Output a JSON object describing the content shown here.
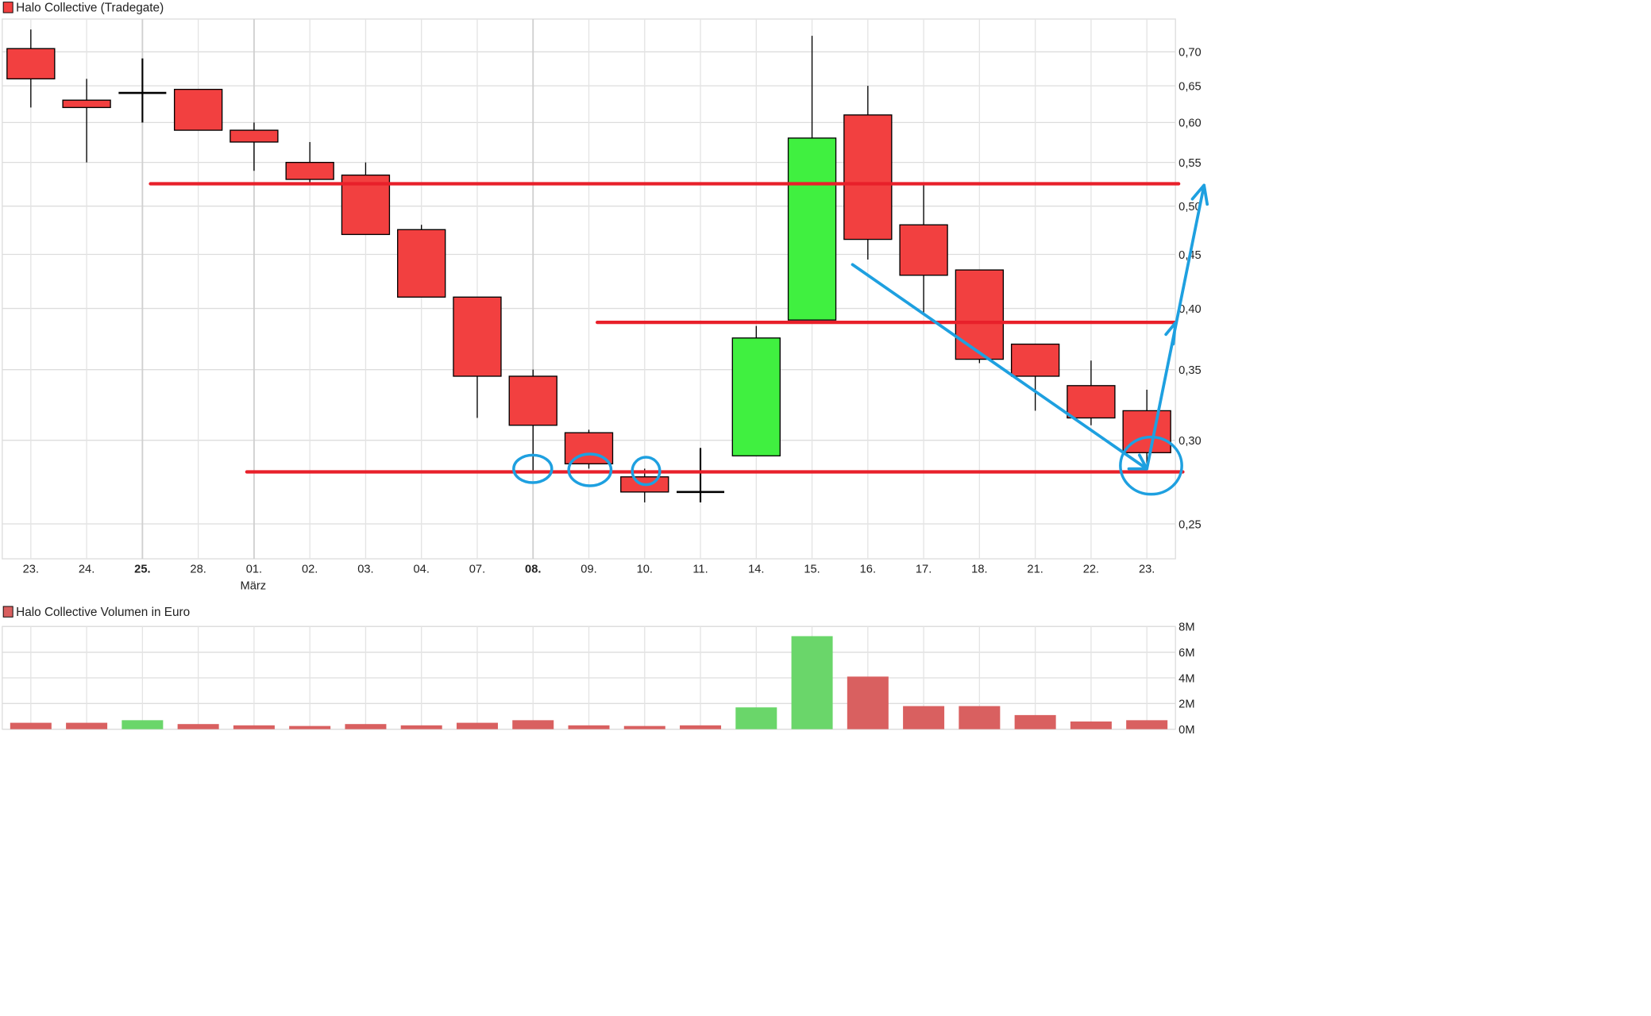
{
  "chart_data": [
    {
      "type": "candlestick",
      "title": "Halo Collective (Tradegate)",
      "y_scale": "log",
      "ylim": [
        0.22,
        0.75
      ],
      "y_ticks": [
        "0,70",
        "0,65",
        "0,60",
        "0,55",
        "0,50",
        "0,45",
        "0,40",
        "0,35",
        "0,30",
        "0,25"
      ],
      "y_tick_values": [
        0.7,
        0.65,
        0.6,
        0.55,
        0.5,
        0.45,
        0.4,
        0.35,
        0.3,
        0.25
      ],
      "grid": true,
      "categories": [
        "23.",
        "24.",
        "25.",
        "28.",
        "01.",
        "02.",
        "03.",
        "04.",
        "07.",
        "08.",
        "09.",
        "10.",
        "11.",
        "14.",
        "15.",
        "16.",
        "17.",
        "18.",
        "21.",
        "22.",
        "23."
      ],
      "bold_categories": [
        "25.",
        "08."
      ],
      "month_label": {
        "category": "01.",
        "text": "März"
      },
      "ohlc": [
        [
          0.705,
          0.735,
          0.62,
          0.66
        ],
        [
          0.63,
          0.66,
          0.55,
          0.62
        ],
        [
          0.64,
          0.69,
          0.6,
          0.64
        ],
        [
          0.645,
          0.645,
          0.59,
          0.59
        ],
        [
          0.59,
          0.6,
          0.54,
          0.575
        ],
        [
          0.55,
          0.575,
          0.525,
          0.53
        ],
        [
          0.535,
          0.55,
          0.47,
          0.47
        ],
        [
          0.475,
          0.48,
          0.41,
          0.41
        ],
        [
          0.41,
          0.41,
          0.315,
          0.345
        ],
        [
          0.345,
          0.35,
          0.28,
          0.31
        ],
        [
          0.305,
          0.307,
          0.282,
          0.285
        ],
        [
          0.277,
          0.282,
          0.262,
          0.268
        ],
        [
          0.268,
          0.295,
          0.262,
          0.268
        ],
        [
          0.29,
          0.385,
          0.29,
          0.375
        ],
        [
          0.39,
          0.725,
          0.39,
          0.58
        ],
        [
          0.61,
          0.65,
          0.445,
          0.465
        ],
        [
          0.48,
          0.525,
          0.395,
          0.43
        ],
        [
          0.435,
          0.435,
          0.355,
          0.358
        ],
        [
          0.37,
          0.37,
          0.32,
          0.345
        ],
        [
          0.338,
          0.357,
          0.31,
          0.315
        ],
        [
          0.32,
          0.335,
          0.282,
          0.292
        ]
      ],
      "colors": {
        "down": "#f24040",
        "up": "#40f040",
        "wick": "#000000"
      },
      "annotations": {
        "horizontal_lines": [
          0.525,
          0.388,
          0.28
        ],
        "line_color": "#e8202a",
        "marker_color": "#1ea0e0"
      }
    },
    {
      "type": "bar",
      "title": "Halo Collective Volumen in Euro",
      "categories": [
        "23.",
        "24.",
        "25.",
        "28.",
        "01.",
        "02.",
        "03.",
        "04.",
        "07.",
        "08.",
        "09.",
        "10.",
        "11.",
        "14.",
        "15.",
        "16.",
        "17.",
        "18.",
        "21.",
        "22.",
        "23."
      ],
      "values": [
        0.5,
        0.5,
        0.7,
        0.4,
        0.3,
        0.25,
        0.4,
        0.3,
        0.5,
        0.7,
        0.3,
        0.25,
        0.3,
        1.7,
        7.25,
        4.1,
        1.8,
        1.8,
        1.1,
        0.6,
        0.7
      ],
      "unit": "M",
      "up": [
        false,
        false,
        true,
        false,
        false,
        false,
        false,
        false,
        false,
        false,
        false,
        false,
        false,
        true,
        true,
        false,
        false,
        false,
        false,
        false,
        false
      ],
      "ylim": [
        0,
        8
      ],
      "y_ticks": [
        "8M",
        "6M",
        "4M",
        "2M",
        "0M"
      ],
      "y_tick_values": [
        8,
        6,
        4,
        2,
        0
      ],
      "colors": {
        "down": "#d96060",
        "up": "#6ad66a"
      }
    }
  ]
}
